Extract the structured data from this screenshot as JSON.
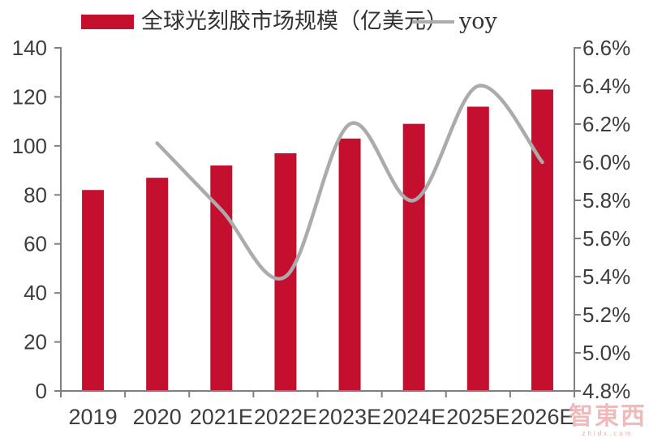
{
  "page": {
    "background": "#ffffff"
  },
  "legend": {
    "series1_label": "全球光刻胶市场规模（亿美元）",
    "series2_label": "yoy"
  },
  "colors": {
    "bar": "#C50F2E",
    "line": "#ABABAB",
    "axis": "#7F7F7F",
    "tick_text": "#3D3D3D",
    "watermark": "#D95A60"
  },
  "watermark": {
    "logo": "智東西",
    "site": "zhidx.com"
  },
  "chart_data": {
    "type": "bar",
    "combo": "bar+line",
    "title": "",
    "xlabel": "",
    "ylabel": "",
    "grid": false,
    "legend_position": "top",
    "categories": [
      "2019",
      "2020",
      "2021E",
      "2022E",
      "2023E",
      "2024E",
      "2025E",
      "2026E"
    ],
    "series": [
      {
        "name": "全球光刻胶市场规模（亿美元）",
        "chart": "bar",
        "axis": "left",
        "values": [
          82,
          87,
          92,
          97,
          103,
          109,
          116,
          123
        ]
      },
      {
        "name": "yoy",
        "chart": "line",
        "axis": "right",
        "values": [
          null,
          6.1,
          5.75,
          5.4,
          6.2,
          5.8,
          6.4,
          6.0
        ],
        "unit": "%"
      }
    ],
    "left_axis": {
      "min": 0,
      "max": 140,
      "step": 20,
      "ticks": [
        "0",
        "20",
        "40",
        "60",
        "80",
        "100",
        "120",
        "140"
      ]
    },
    "right_axis": {
      "min": 4.8,
      "max": 6.6,
      "step": 0.2,
      "ticks": [
        "4.8%",
        "5.0%",
        "5.2%",
        "5.4%",
        "5.6%",
        "5.8%",
        "6.0%",
        "6.2%",
        "6.4%",
        "6.6%"
      ]
    }
  }
}
